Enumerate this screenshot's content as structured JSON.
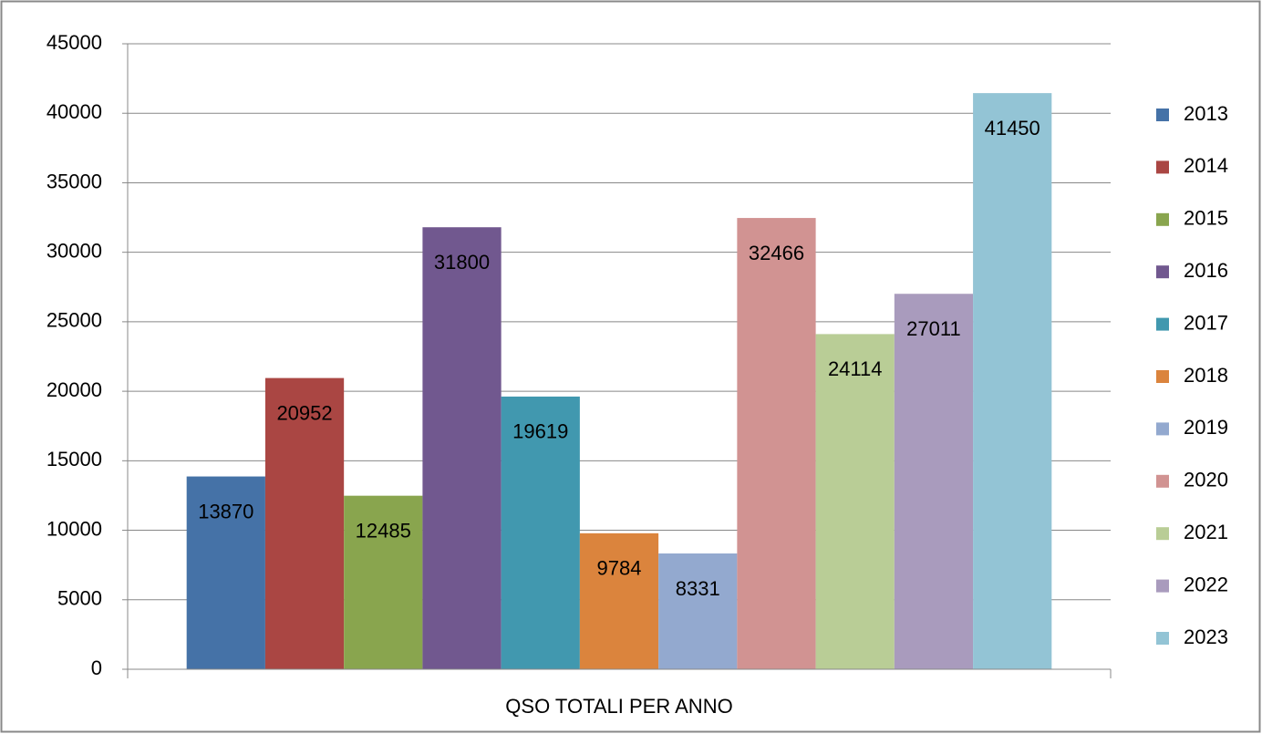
{
  "chart_data": {
    "type": "bar",
    "categories": [
      "QSO TOTALI PER ANNO"
    ],
    "series": [
      {
        "name": "2013",
        "color": "#4572a7",
        "values": [
          13870
        ]
      },
      {
        "name": "2014",
        "color": "#aa4643",
        "values": [
          20952
        ]
      },
      {
        "name": "2015",
        "color": "#89a54e",
        "values": [
          12485
        ]
      },
      {
        "name": "2016",
        "color": "#71588f",
        "values": [
          31800
        ]
      },
      {
        "name": "2017",
        "color": "#4198af",
        "values": [
          19619
        ]
      },
      {
        "name": "2018",
        "color": "#db843d",
        "values": [
          9784
        ]
      },
      {
        "name": "2019",
        "color": "#93a9cf",
        "values": [
          8331
        ]
      },
      {
        "name": "2020",
        "color": "#d19392",
        "values": [
          32466
        ]
      },
      {
        "name": "2021",
        "color": "#b9cd96",
        "values": [
          24114
        ]
      },
      {
        "name": "2022",
        "color": "#a99bbd",
        "values": [
          27011
        ]
      },
      {
        "name": "2023",
        "color": "#93c4d5",
        "values": [
          41450
        ]
      }
    ],
    "ylim": [
      0,
      45000
    ],
    "yticks": [
      0,
      5000,
      10000,
      15000,
      20000,
      25000,
      30000,
      35000,
      40000,
      45000
    ],
    "grid": true,
    "legend": "right"
  }
}
